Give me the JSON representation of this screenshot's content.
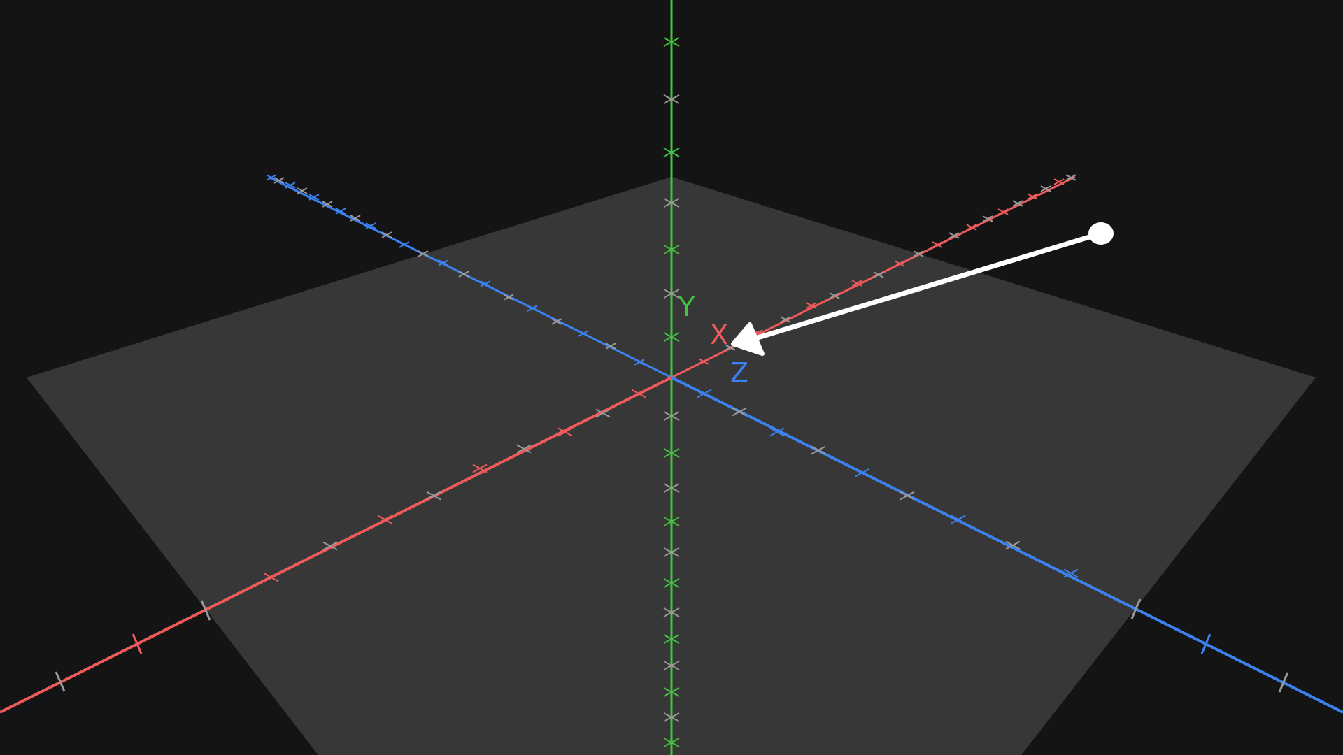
{
  "viewport": {
    "background": "#141414",
    "ground_plane_color": "#373737",
    "tick_minor_color": "#9a9a9a"
  },
  "axes": {
    "x": {
      "label": "X",
      "color": "#ef5a5a"
    },
    "y": {
      "label": "Y",
      "color": "#43c443"
    },
    "z": {
      "label": "Z",
      "color": "#3b82f0"
    }
  },
  "direction_arrow": {
    "color": "#ffffff",
    "head_icon": "arrowhead-icon",
    "handle_icon": "drag-handle-dot-icon"
  }
}
